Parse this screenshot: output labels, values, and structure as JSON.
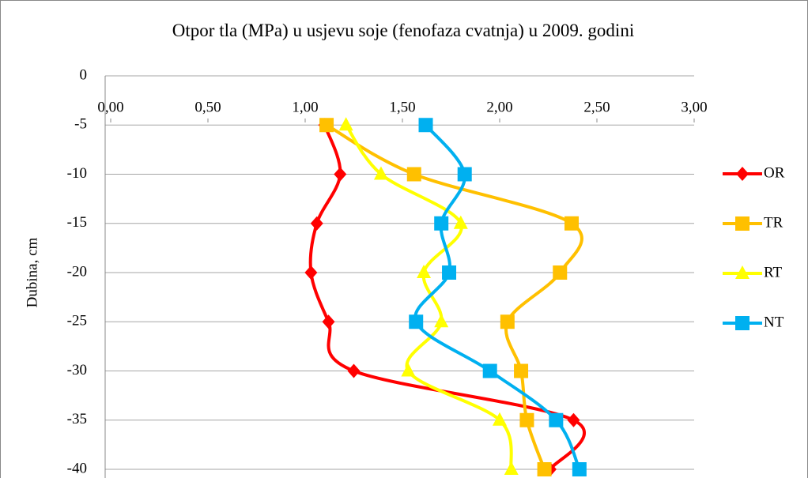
{
  "chart_data": {
    "type": "line",
    "orientation": "horizontal",
    "title": "Otpor tla (MPa) u usjevu soje (fenofaza cvatnja) u 2009. godini",
    "y_label": "Dubina, cm",
    "y": [
      -5,
      -10,
      -15,
      -20,
      -25,
      -30,
      -35,
      -40
    ],
    "series": [
      {
        "name": "OR",
        "color": "#ff0000",
        "marker": "diamond",
        "values": [
          1.1,
          1.18,
          1.06,
          1.03,
          1.12,
          1.25,
          2.38,
          2.26
        ]
      },
      {
        "name": "TR",
        "color": "#ffc000",
        "marker": "square",
        "values": [
          1.11,
          1.56,
          2.37,
          2.31,
          2.04,
          2.11,
          2.14,
          2.23
        ]
      },
      {
        "name": "RT",
        "color": "#ffff00",
        "marker": "triangle",
        "values": [
          1.21,
          1.39,
          1.8,
          1.61,
          1.7,
          1.53,
          2.0,
          2.06
        ]
      },
      {
        "name": "NT",
        "color": "#00b0f0",
        "marker": "square",
        "values": [
          1.62,
          1.82,
          1.7,
          1.74,
          1.57,
          1.95,
          2.29,
          2.41
        ]
      }
    ],
    "xlim": [
      0,
      3
    ],
    "xticks": [
      {
        "value": 0,
        "label": "0,00"
      },
      {
        "value": 0.5,
        "label": "0,50"
      },
      {
        "value": 1,
        "label": "1,00"
      },
      {
        "value": 1.5,
        "label": "1,50"
      },
      {
        "value": 2,
        "label": "2,00"
      },
      {
        "value": 2.5,
        "label": "2,50"
      },
      {
        "value": 3,
        "label": "3,00"
      }
    ],
    "ylim": [
      0,
      -40
    ],
    "yticks": [
      0,
      -5,
      -10,
      -15,
      -20,
      -25,
      -30,
      -35,
      -40
    ],
    "smooth": true,
    "grid": true,
    "legend": "right"
  }
}
